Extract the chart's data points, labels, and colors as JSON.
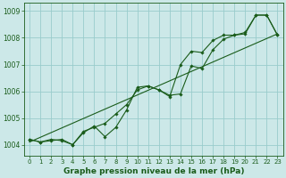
{
  "xlabel": "Graphe pression niveau de la mer (hPa)",
  "xlim": [
    -0.5,
    23.5
  ],
  "ylim": [
    1003.6,
    1009.3
  ],
  "yticks": [
    1004,
    1005,
    1006,
    1007,
    1008,
    1009
  ],
  "xticks": [
    0,
    1,
    2,
    3,
    4,
    5,
    6,
    7,
    8,
    9,
    10,
    11,
    12,
    13,
    14,
    15,
    16,
    17,
    18,
    19,
    20,
    21,
    22,
    23
  ],
  "bg_color": "#cce8e8",
  "grid_color": "#99cccc",
  "line_color": "#1a5c1a",
  "line1_x": [
    0,
    1,
    2,
    3,
    4,
    5,
    6,
    7,
    8,
    9,
    10,
    11,
    12,
    13,
    14,
    15,
    16,
    17,
    18,
    19,
    20,
    21,
    22,
    23
  ],
  "line1_y": [
    1004.2,
    1004.1,
    1004.2,
    1004.15,
    1004.0,
    1004.5,
    1004.65,
    1004.8,
    1005.15,
    1005.5,
    1006.05,
    1006.2,
    1006.05,
    1005.8,
    1007.0,
    1007.5,
    1007.45,
    1007.9,
    1008.1,
    1008.1,
    1008.2,
    1008.85,
    1008.85,
    1008.1
  ],
  "line2_x": [
    0,
    1,
    2,
    3,
    4,
    5,
    6,
    7,
    8,
    9,
    10,
    11,
    12,
    13,
    14,
    15,
    16,
    17,
    18,
    19,
    20,
    21,
    22,
    23
  ],
  "line2_y": [
    1004.2,
    1004.1,
    1004.15,
    1004.2,
    1004.0,
    1004.45,
    1004.7,
    1004.3,
    1004.65,
    1005.3,
    1006.15,
    1006.2,
    1006.05,
    1005.85,
    1005.9,
    1006.95,
    1006.85,
    1007.55,
    1007.95,
    1008.1,
    1008.15,
    1008.85,
    1008.85,
    1008.1
  ],
  "trend_x": [
    0,
    23
  ],
  "trend_y": [
    1004.1,
    1008.15
  ],
  "marker": "D",
  "markersize": 1.8,
  "linewidth": 0.8
}
